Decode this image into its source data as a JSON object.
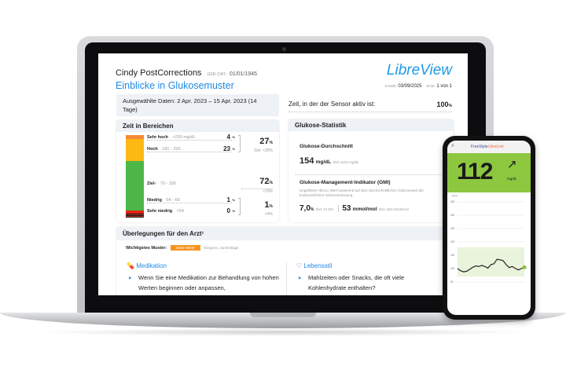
{
  "report": {
    "patient_name": "Cindy PostCorrections",
    "dob_label": "GEB.-DAT.:",
    "dob": "01/01/1945",
    "title": "Einblicke in Glukosemuster",
    "logo": "LibreView",
    "created_label": "Erstellt:",
    "created": "03/09/2025",
    "page_label": "Seite:",
    "page": "1 von 1",
    "selected_dates": "Ausgewählte Daten: 2 Apr. 2023 – 15 Apr. 2023 (14 Tage)",
    "sensor_label": "Zeit, in der der Sensor aktiv ist:",
    "sensor_value": "100",
    "pct": "%"
  },
  "time_in_ranges": {
    "title": "Zeit in Bereichen",
    "rows": [
      {
        "label": "Sehr hoch",
        "range": ">250 mg/dL",
        "value": "4",
        "color": "#f58a3a"
      },
      {
        "label": "Hoch",
        "range": "181 - 250",
        "value": "23",
        "color": "#fdb913"
      },
      {
        "label": "Ziel-",
        "range": "70 - 180",
        "value": "72",
        "color": "#4cb748"
      },
      {
        "label": "Niedrig",
        "range": "54 - 69",
        "value": "1",
        "color": "#e2231a"
      },
      {
        "label": "Sehr niedrig",
        "range": "<54",
        "value": "0",
        "color": "#8b1a1a"
      }
    ],
    "high_total": "27",
    "high_goal": "Ziel: <25%",
    "target_total": "72",
    "target_goal": ">70%",
    "low_total": "1",
    "low_goal": "<4%"
  },
  "glucose_stats": {
    "title": "Glukose-Statistik",
    "avg_label": "Glukose-Durchschnitt",
    "avg_value": "154",
    "avg_unit": "mg/dL",
    "avg_goal": "Ziel: ≤154 mg/dL",
    "gmi_label": "Glukose-Management-Indikator (GMI)",
    "gmi_desc": "Ungefährer HbA1c-Wert basierend auf dem durchschnittlichen Glukosewert der kontinuierlichen Glukosemessung.",
    "gmi_pct": "7,0",
    "gmi_pct_goal": "Ziel: ≤7,0%",
    "gmi_mmol": "53",
    "gmi_mmol_unit": "mmol/mol",
    "gmi_mmol_goal": "Ziel: ≤53 mmol/mol"
  },
  "considerations": {
    "title": "Überlegungen für den Arzt¹",
    "pattern_label": "Wichtigstes Muster:",
    "pattern_badge": "Hohe Werte",
    "pattern_badge_color": "#f7941d",
    "pattern_time": "Morgens, nachmittags",
    "medication_title": "Medikation",
    "medication_text": "Wenn Sie eine Medikation zur Behandlung von hohen Werten beginnen oder anpassen,",
    "lifestyle_title": "Lebensstil",
    "lifestyle_text": "Mahlzeiten oder Snacks, die oft viele Kohlenhydrate enthalten?"
  },
  "phone": {
    "brand_a": "FreeStyle",
    "brand_b": "LibreLink",
    "menu_icon": "hamburger-icon",
    "glucose": "112",
    "unit": "mg/dL",
    "trend_icon": "arrow-up-right-icon",
    "green": "#8dc63f",
    "chart_data": {
      "type": "line",
      "ylabel": "mg/dL",
      "y_ticks": [
        "350",
        "300",
        "250",
        "200",
        "150",
        "100",
        "50"
      ],
      "target_range": [
        70,
        180
      ],
      "values": [
        100,
        92,
        88,
        90,
        97,
        105,
        110,
        108,
        112,
        108,
        102,
        115,
        118,
        135,
        133,
        130,
        115,
        104,
        108,
        101,
        95,
        100,
        105
      ]
    }
  }
}
